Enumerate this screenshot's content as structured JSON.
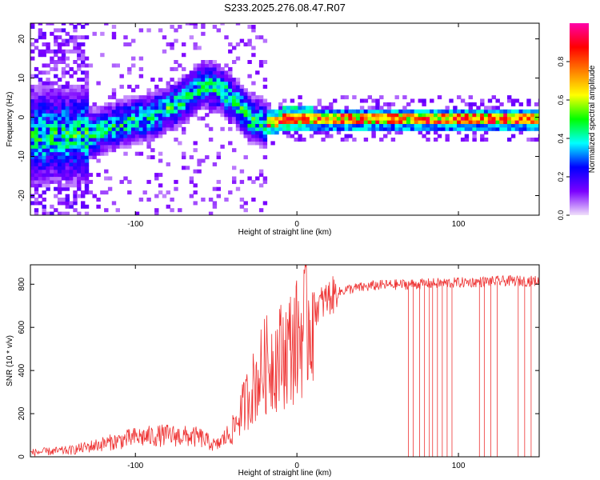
{
  "title": "S233.2025.276.08.47.R07",
  "chart_data": [
    {
      "type": "heatmap",
      "xlabel": "Height of straight line (km)",
      "ylabel": "Frequency (Hz)",
      "xlim": [
        -165,
        150
      ],
      "ylim": [
        -25,
        24
      ],
      "xticks": [
        -100,
        0,
        100
      ],
      "xtick_labels": [
        "-100",
        "0",
        "100"
      ],
      "yticks": [
        20,
        10,
        0,
        -10,
        -20
      ],
      "ytick_labels": [
        "20",
        "10",
        "0",
        "-10",
        "-20"
      ],
      "colorbar": {
        "label": "Normalized spectral amplitude",
        "range": [
          0.0,
          1.0
        ],
        "ticks": [
          0.0,
          0.2,
          0.4,
          0.6,
          0.8
        ],
        "tick_labels": [
          "0.0",
          "0.2",
          "0.4",
          "0.6",
          "0.8"
        ],
        "colors": [
          "#f0e0fa",
          "#7b00ff",
          "#0000ff",
          "#00ffff",
          "#00ff00",
          "#ffff00",
          "#ff8000",
          "#ff0000",
          "#ff00aa"
        ]
      },
      "ridge": [
        {
          "x": -130,
          "freq": -5
        },
        {
          "x": -110,
          "freq": -2
        },
        {
          "x": -90,
          "freq": 0
        },
        {
          "x": -75,
          "freq": 3
        },
        {
          "x": -60,
          "freq": 8
        },
        {
          "x": -50,
          "freq": 7
        },
        {
          "x": -40,
          "freq": 4
        },
        {
          "x": -30,
          "freq": -1
        },
        {
          "x": -20,
          "freq": -2
        },
        {
          "x": -10,
          "freq": -1
        },
        {
          "x": 0,
          "freq": -1
        },
        {
          "x": 10,
          "freq": -1
        },
        {
          "x": 50,
          "freq": -1
        },
        {
          "x": 100,
          "freq": -1
        },
        {
          "x": 150,
          "freq": -1
        }
      ],
      "carrier_amplitude": 0.95
    },
    {
      "type": "line",
      "xlabel": "Height of straight line (km)",
      "ylabel": "SNR (10 * v/v)",
      "xlim": [
        -165,
        150
      ],
      "ylim": [
        0,
        890
      ],
      "xticks": [
        -100,
        0,
        100
      ],
      "xtick_labels": [
        "-100",
        "0",
        "100"
      ],
      "yticks": [
        0,
        200,
        400,
        600,
        800
      ],
      "ytick_labels": [
        "0",
        "200",
        "400",
        "600",
        "800"
      ],
      "series": [
        {
          "name": "SNR",
          "color": "#ee3333",
          "x": [
            -165,
            -140,
            -120,
            -100,
            -80,
            -60,
            -50,
            -40,
            -30,
            -20,
            -10,
            0,
            10,
            20,
            30,
            50,
            70,
            90,
            110,
            130,
            150
          ],
          "values": [
            20,
            30,
            60,
            90,
            100,
            90,
            50,
            120,
            280,
            420,
            470,
            540,
            680,
            740,
            775,
            795,
            800,
            805,
            810,
            815,
            815
          ]
        }
      ],
      "dropouts": [
        69,
        72,
        76,
        79,
        82,
        84,
        87,
        90,
        93,
        96,
        113,
        116,
        120,
        124,
        137,
        141,
        145
      ]
    }
  ]
}
